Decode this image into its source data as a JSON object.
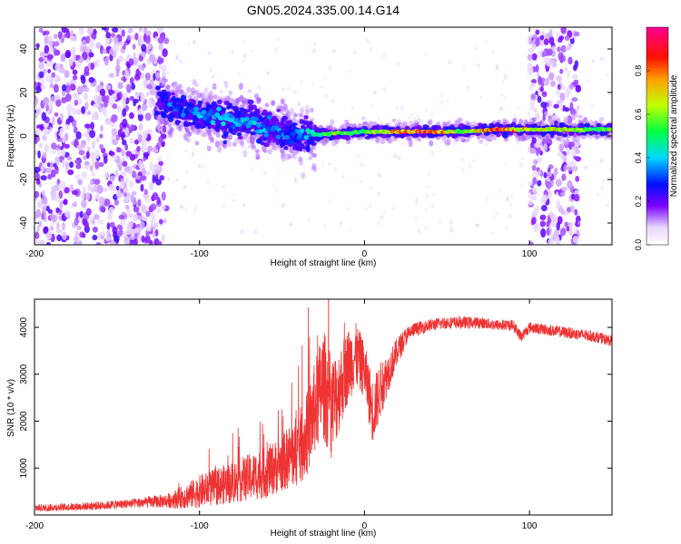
{
  "title": "GN05.2024.335.00.14.G14",
  "colors": {
    "snr_line": "#ee3333",
    "spectrogram_low": "#c9a6ff",
    "spectrogram_mid": "#5500ee",
    "spectrogram_high": "#ff2200"
  },
  "chart_data": [
    {
      "type": "heatmap",
      "title": "GN05.2024.335.00.14.G14",
      "xlabel": "Height of straight line (km)",
      "ylabel": "Frequency (Hz)",
      "xlim": [
        -200,
        150
      ],
      "ylim": [
        -50,
        50
      ],
      "x_ticks": [
        -200,
        -100,
        0,
        100
      ],
      "x_tick_labels": [
        "-200",
        "-100",
        "0",
        "100"
      ],
      "y_ticks": [
        -40,
        -20,
        0,
        20,
        40
      ],
      "y_tick_labels": [
        "-40",
        "-20",
        "0",
        "20",
        "40"
      ],
      "colorbar": {
        "label": "Normalized spectral amplitude",
        "range": [
          0,
          1
        ],
        "ticks": [
          0.0,
          0.2,
          0.4,
          0.6,
          0.8
        ],
        "tick_labels": [
          "0.0",
          "0.2",
          "0.4",
          "0.6",
          "0.8"
        ],
        "colormap": "rainbow (white-violet-blue-cyan-green-yellow-red-magenta)"
      },
      "grid": false,
      "description_of_features": {
        "ridge": [
          {
            "x": -120,
            "y": 15,
            "amp": 0.3
          },
          {
            "x": -100,
            "y": 10,
            "amp": 0.35
          },
          {
            "x": -80,
            "y": 8,
            "amp": 0.4
          },
          {
            "x": -60,
            "y": 4,
            "amp": 0.35
          },
          {
            "x": -40,
            "y": 0,
            "amp": 0.3
          },
          {
            "x": -20,
            "y": 1,
            "amp": 0.6
          },
          {
            "x": 0,
            "y": 2,
            "amp": 0.5
          },
          {
            "x": 20,
            "y": 2,
            "amp": 0.75
          },
          {
            "x": 40,
            "y": 2,
            "amp": 0.85
          },
          {
            "x": 60,
            "y": 2,
            "amp": 0.5
          },
          {
            "x": 80,
            "y": 3,
            "amp": 0.85
          },
          {
            "x": 95,
            "y": 3,
            "amp": 0.7
          },
          {
            "x": 130,
            "y": 3,
            "amp": 0.55
          },
          {
            "x": 150,
            "y": 3,
            "amp": 0.55
          }
        ],
        "noise_regions_x": [
          [
            -200,
            -120
          ],
          [
            100,
            130
          ]
        ]
      }
    },
    {
      "type": "line",
      "xlabel": "Height of straight line (km)",
      "ylabel": "SNR (10 * v/v)",
      "xlim": [
        -200,
        150
      ],
      "ylim": [
        0,
        4600
      ],
      "x_ticks": [
        -200,
        -100,
        0,
        100
      ],
      "x_tick_labels": [
        "-200",
        "-100",
        "0",
        "100"
      ],
      "y_ticks": [
        1000,
        2000,
        3000,
        4000
      ],
      "y_tick_labels": [
        "1000",
        "2000",
        "3000",
        "4000"
      ],
      "grid": false,
      "series": [
        {
          "x": [
            -200,
            -180,
            -160,
            -140,
            -120,
            -110,
            -100,
            -90,
            -80,
            -70,
            -60,
            -50,
            -40,
            -35,
            -30,
            -25,
            -20,
            -15,
            -10,
            -5,
            0,
            5,
            10,
            15,
            20,
            25,
            30,
            40,
            50,
            60,
            70,
            80,
            90,
            95,
            100,
            110,
            120,
            130,
            140,
            150
          ],
          "y": [
            150,
            170,
            200,
            250,
            300,
            380,
            500,
            600,
            700,
            800,
            900,
            1100,
            1400,
            1700,
            2300,
            2800,
            2300,
            2700,
            3200,
            3400,
            3100,
            2200,
            2700,
            3100,
            3500,
            3800,
            3950,
            4050,
            4100,
            4100,
            4100,
            4050,
            4050,
            3800,
            4000,
            3950,
            3900,
            3850,
            3800,
            3700
          ],
          "noise_amplitude": [
            80,
            80,
            90,
            100,
            150,
            250,
            350,
            400,
            450,
            500,
            550,
            600,
            800,
            900,
            1000,
            1200,
            1100,
            900,
            800,
            700,
            600,
            700,
            600,
            400,
            300,
            200,
            150,
            130,
            130,
            130,
            120,
            120,
            120,
            120,
            120,
            120,
            120,
            120,
            120,
            120
          ]
        }
      ]
    }
  ]
}
